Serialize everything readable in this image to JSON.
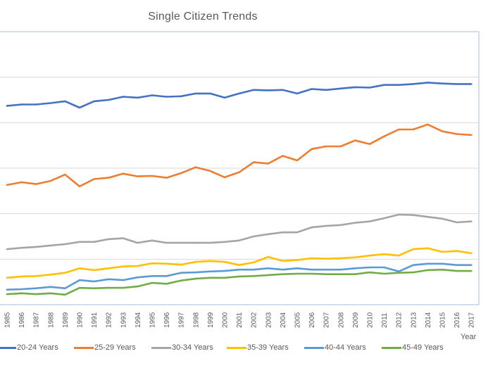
{
  "chart_data": {
    "type": "line",
    "title": "Single Citizen Trends",
    "xlabel": "Year",
    "ylabel": "",
    "y_tick_labels_visible": false,
    "y_units_note": "Y-axis tick labels are not visible; values expressed in gridline units (0 = x-axis, each gridline = 1)",
    "ylim": [
      0,
      6
    ],
    "grid": true,
    "legend_position": "bottom",
    "x": [
      "1985",
      "1986",
      "1987",
      "1988",
      "1989",
      "1990",
      "1991",
      "1992",
      "1993",
      "1994",
      "1995",
      "1996",
      "1997",
      "1998",
      "1999",
      "2000",
      "2001",
      "2002",
      "2003",
      "2004",
      "2005",
      "2006",
      "2007",
      "2008",
      "2009",
      "2010",
      "2011",
      "2012",
      "2013",
      "2014",
      "2015",
      "2016",
      "2017"
    ],
    "series": [
      {
        "name": "20-24 Years",
        "color": "#4472C4",
        "values": [
          4.37,
          4.4,
          4.4,
          4.43,
          4.47,
          4.33,
          4.47,
          4.5,
          4.57,
          4.55,
          4.6,
          4.57,
          4.58,
          4.64,
          4.64,
          4.55,
          4.64,
          4.72,
          4.71,
          4.72,
          4.64,
          4.74,
          4.72,
          4.75,
          4.78,
          4.77,
          4.83,
          4.83,
          4.85,
          4.88,
          4.86,
          4.85,
          4.85
        ]
      },
      {
        "name": "25-29 Years",
        "color": "#ED7D31",
        "values": [
          2.63,
          2.69,
          2.65,
          2.72,
          2.86,
          2.6,
          2.76,
          2.79,
          2.88,
          2.82,
          2.83,
          2.79,
          2.89,
          3.02,
          2.94,
          2.8,
          2.91,
          3.13,
          3.1,
          3.27,
          3.17,
          3.42,
          3.48,
          3.48,
          3.61,
          3.53,
          3.7,
          3.85,
          3.85,
          3.96,
          3.81,
          3.75,
          3.73
        ]
      },
      {
        "name": "30-34 Years",
        "color": "#A5A5A5",
        "values": [
          1.22,
          1.25,
          1.27,
          1.3,
          1.33,
          1.38,
          1.38,
          1.44,
          1.46,
          1.36,
          1.41,
          1.36,
          1.36,
          1.36,
          1.36,
          1.38,
          1.41,
          1.5,
          1.55,
          1.59,
          1.59,
          1.7,
          1.73,
          1.75,
          1.8,
          1.83,
          1.9,
          1.98,
          1.97,
          1.93,
          1.89,
          1.81,
          1.83
        ]
      },
      {
        "name": "35-39 Years",
        "color": "#FFC000",
        "values": [
          0.59,
          0.62,
          0.63,
          0.66,
          0.7,
          0.8,
          0.76,
          0.8,
          0.84,
          0.85,
          0.91,
          0.9,
          0.88,
          0.94,
          0.96,
          0.94,
          0.87,
          0.93,
          1.05,
          0.96,
          0.98,
          1.02,
          1.01,
          1.02,
          1.04,
          1.08,
          1.11,
          1.08,
          1.22,
          1.24,
          1.16,
          1.18,
          1.13
        ]
      },
      {
        "name": "40-44 Years",
        "color": "#5B9BD5",
        "values": [
          0.33,
          0.34,
          0.36,
          0.39,
          0.36,
          0.54,
          0.51,
          0.56,
          0.54,
          0.6,
          0.63,
          0.63,
          0.7,
          0.71,
          0.73,
          0.74,
          0.77,
          0.77,
          0.8,
          0.77,
          0.8,
          0.77,
          0.77,
          0.77,
          0.8,
          0.82,
          0.82,
          0.73,
          0.87,
          0.9,
          0.9,
          0.87,
          0.87
        ]
      },
      {
        "name": "45-49 Years",
        "color": "#70AD47",
        "values": [
          0.23,
          0.25,
          0.23,
          0.25,
          0.22,
          0.37,
          0.36,
          0.37,
          0.37,
          0.4,
          0.48,
          0.46,
          0.53,
          0.57,
          0.59,
          0.59,
          0.62,
          0.63,
          0.65,
          0.67,
          0.68,
          0.68,
          0.67,
          0.67,
          0.67,
          0.71,
          0.68,
          0.7,
          0.71,
          0.76,
          0.77,
          0.74,
          0.74
        ]
      }
    ]
  }
}
